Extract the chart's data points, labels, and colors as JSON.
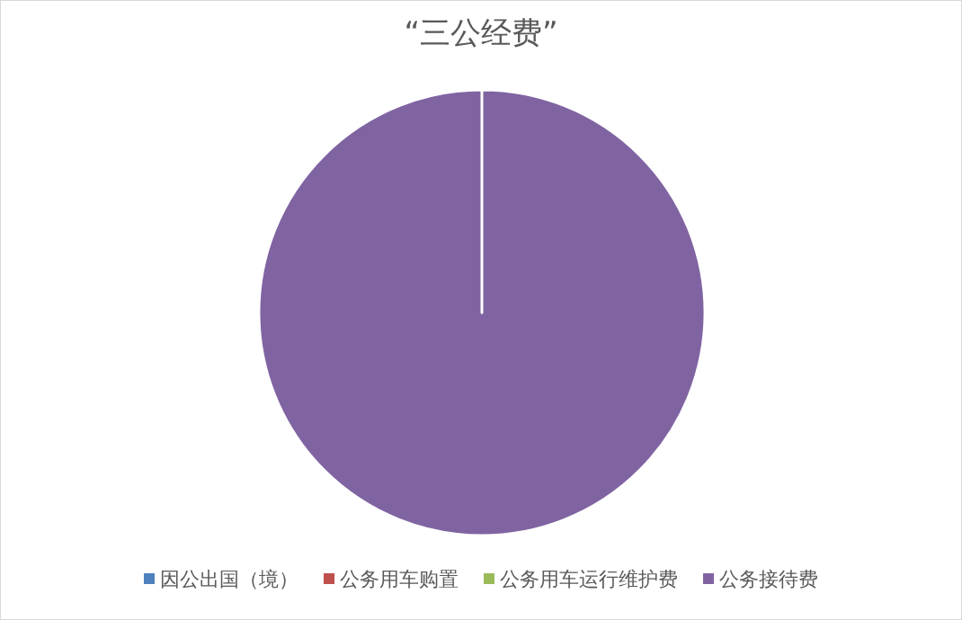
{
  "chart_data": {
    "type": "pie",
    "title": "“三公经费”",
    "categories": [
      "因公出国（境）",
      "公务用车购置",
      "公务用车运行维护费",
      "公务接待费"
    ],
    "values": [
      0,
      0,
      0,
      100
    ],
    "colors": [
      "#4f81bd",
      "#c0504d",
      "#9bbb59",
      "#8064a2"
    ],
    "legend": "bottom"
  }
}
